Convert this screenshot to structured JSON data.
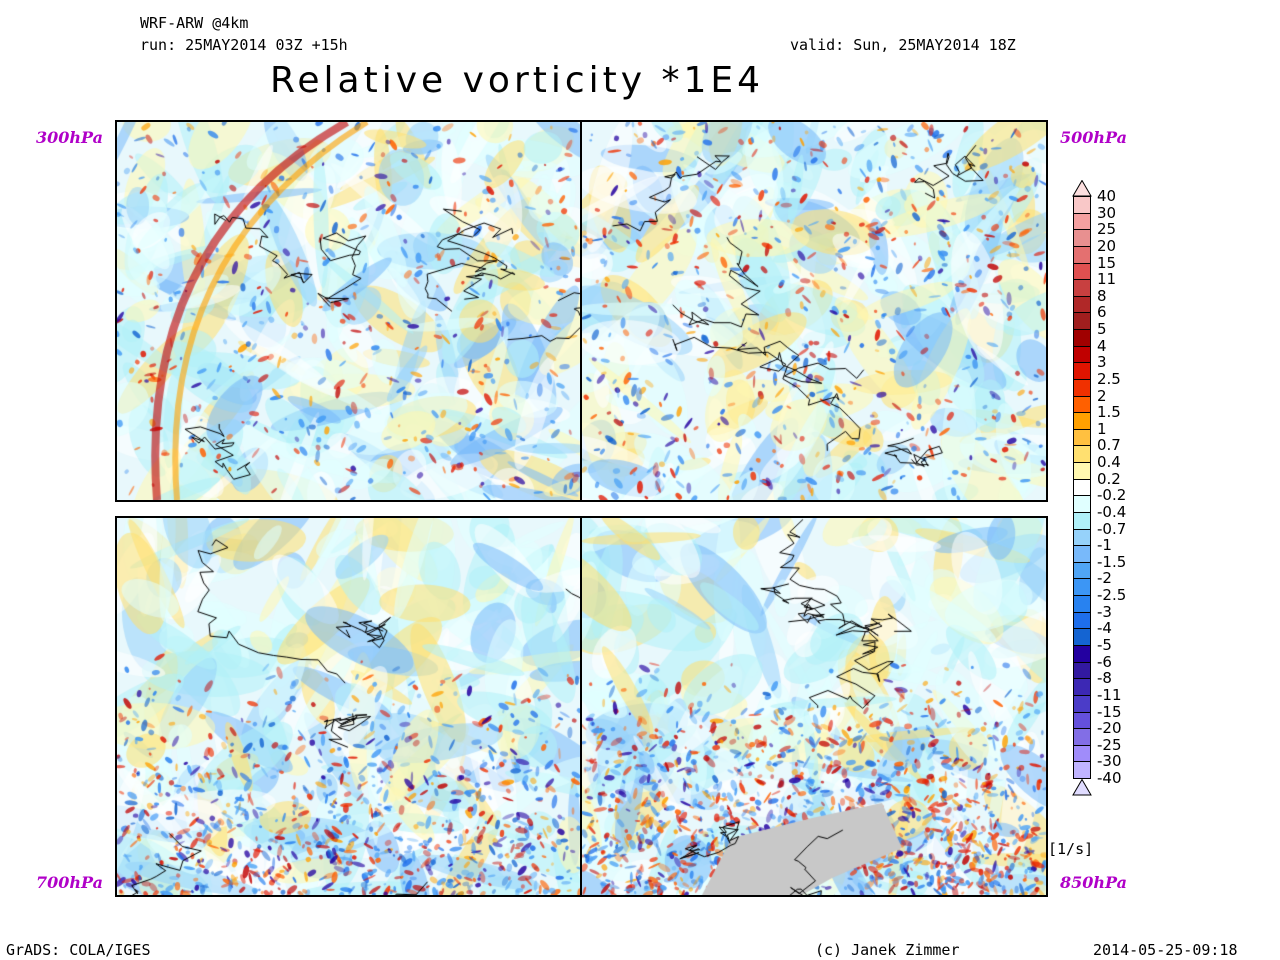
{
  "header": {
    "model": "WRF-ARW @4km",
    "run": "run: 25MAY2014 03Z +15h",
    "valid": "valid: Sun, 25MAY2014 18Z",
    "title": "Relative vorticity *1E4"
  },
  "panels": [
    {
      "level": "300hPa",
      "position": "top-left"
    },
    {
      "level": "500hPa",
      "position": "top-right"
    },
    {
      "level": "700hPa",
      "position": "bottom-left"
    },
    {
      "level": "850hPa",
      "position": "bottom-right"
    }
  ],
  "colorbar": {
    "unit": "[1/s]",
    "labels": [
      "40",
      "30",
      "25",
      "20",
      "15",
      "11",
      "8",
      "6",
      "5",
      "4",
      "3",
      "2.5",
      "2",
      "1.5",
      "1",
      "0.7",
      "0.4",
      "0.2",
      "-0.2",
      "-0.4",
      "-0.7",
      "-1",
      "-1.5",
      "-2",
      "-2.5",
      "-3",
      "-4",
      "-5",
      "-6",
      "-8",
      "-11",
      "-15",
      "-20",
      "-25",
      "-30",
      "-40"
    ],
    "top_arrow_color": "#fde0e0",
    "bottom_arrow_color": "#e0dcff",
    "colors": [
      "#f9c8c8",
      "#f4a0a0",
      "#e89090",
      "#e47070",
      "#e05050",
      "#c84040",
      "#b02828",
      "#a01e1e",
      "#a00000",
      "#c00000",
      "#e01400",
      "#f03000",
      "#ff6000",
      "#ffa000",
      "#ffc040",
      "#ffe070",
      "#fff8b0",
      "#ffffff",
      "#e0ffff",
      "#b0f0f8",
      "#96d2fa",
      "#78b9fa",
      "#50a5f5",
      "#3c96f5",
      "#2882f0",
      "#1e6eeb",
      "#1464d2",
      "#2300a0",
      "#3219a0",
      "#3c28b4",
      "#4b3cc8",
      "#6450dc",
      "#826ee6",
      "#a08cfa",
      "#c0b4ff"
    ]
  },
  "footer": {
    "software": "GrADS: COLA/IGES",
    "credit": "(c) Janek Zimmer",
    "timestamp": "2014-05-25-09:18"
  }
}
